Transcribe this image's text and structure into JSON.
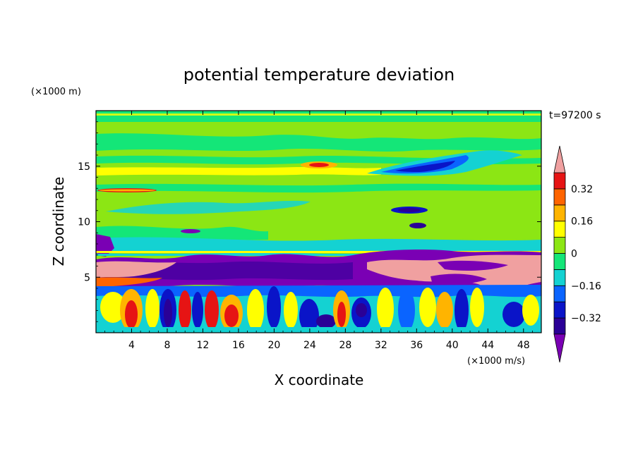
{
  "chart_data": {
    "type": "heatmap",
    "title": "potential temperature deviation",
    "xlabel": "X coordinate",
    "ylabel": "Z coordinate",
    "x_unit": "(×1000 m/s)",
    "y_unit": "(×1000 m)",
    "time_label": "t=97200 s",
    "xlim": [
      0,
      50
    ],
    "ylim": [
      0,
      20
    ],
    "x_ticks": [
      4,
      8,
      12,
      16,
      20,
      24,
      28,
      32,
      36,
      40,
      44,
      48
    ],
    "y_ticks": [
      5,
      10,
      15
    ],
    "colorbar": {
      "levels": [
        -0.4,
        -0.32,
        -0.24,
        -0.16,
        -0.08,
        0,
        0.08,
        0.16,
        0.24,
        0.32,
        0.4
      ],
      "tick_labels": [
        "0.32",
        "0.16",
        "0",
        "−0.16",
        "−0.32"
      ],
      "tick_values": [
        0.32,
        0.16,
        0,
        -0.16,
        -0.32
      ],
      "colors": [
        "#7a00b4",
        "#2a0096",
        "#0a14c8",
        "#0a64ff",
        "#14d2d2",
        "#14e678",
        "#8ce614",
        "#ffff00",
        "#ffb400",
        "#ff6400",
        "#e61414",
        "#f0a0a0"
      ],
      "extend": "both"
    },
    "background_color": "#8ce614"
  }
}
